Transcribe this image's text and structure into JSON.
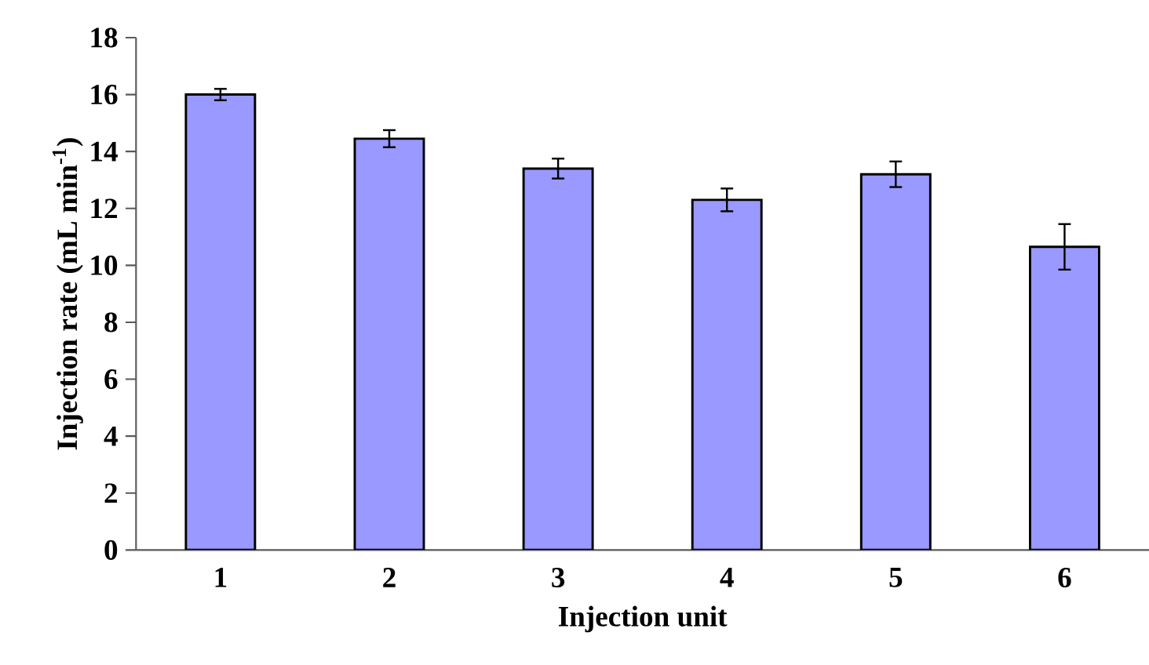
{
  "chart_data": {
    "type": "bar",
    "xlabel": "Injection unit",
    "ylabel": "Injection rate (mL min$^{-1}$)",
    "categories": [
      "1",
      "2",
      "3",
      "4",
      "5",
      "6"
    ],
    "values": [
      16.0,
      14.45,
      13.4,
      12.3,
      13.2,
      10.65
    ],
    "errors": [
      0.2,
      0.3,
      0.35,
      0.4,
      0.45,
      0.8
    ],
    "color": "#9999ff",
    "ylim": [
      0,
      18
    ],
    "yticks": [
      0,
      2,
      4,
      6,
      8,
      10,
      12,
      14,
      16,
      18
    ]
  }
}
